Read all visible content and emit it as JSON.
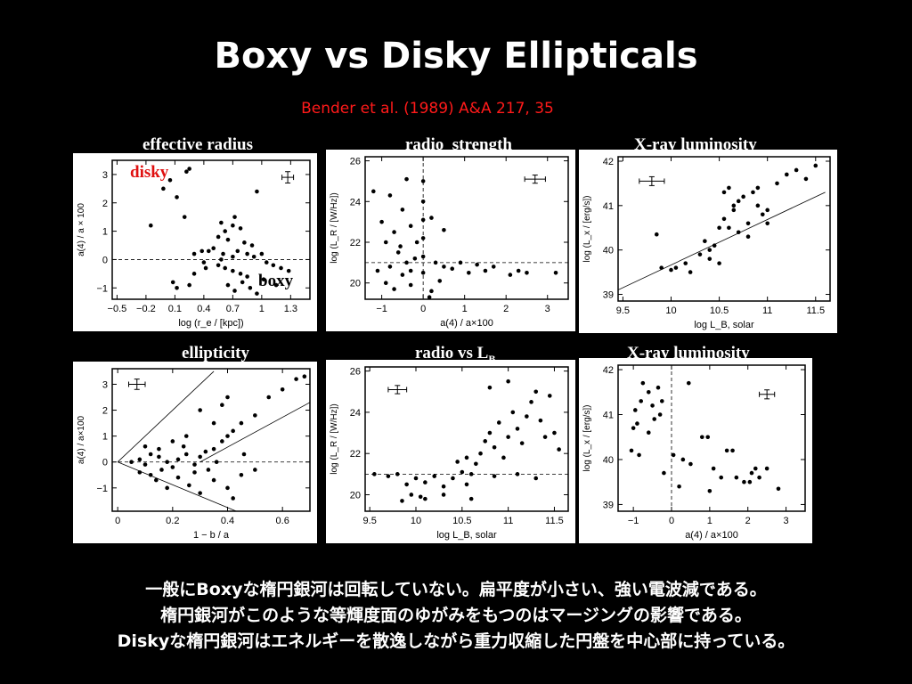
{
  "title": "Boxy vs Disky Ellipticals",
  "citation": "Bender et al. (1989) A&A 217, 35",
  "overlay": {
    "disky": "disky",
    "boxy": "boxy"
  },
  "caption": [
    "一般にBoxyな楕円銀河は回転していない。扁平度が小さい、強い電波減である。",
    "楕円銀河がこのような等輝度面のゆがみをもつのはマージングの影響である。",
    "Diskyな楕円銀河はエネルギーを散逸しながら重力収縮した円盤を中心部に持っている。"
  ],
  "colors": {
    "background": "#000000",
    "citation": "#ff1a1a",
    "disky": "#e01010",
    "plot": "#ffffff"
  },
  "chart_data": [
    {
      "type": "scatter",
      "label": "effective radius",
      "xlabel": "log (r_e / [kpc])",
      "ylabel": "a(4) / a × 100",
      "xlim": [
        -0.55,
        1.5
      ],
      "ylim": [
        -1.4,
        3.5
      ],
      "xticks": [
        -0.5,
        -0.2,
        0.1,
        0.4,
        0.7,
        1.0,
        1.3
      ],
      "xticklabels": [
        "−0.5",
        "−0.2",
        "0.1",
        "0.4",
        "0.7",
        "1",
        "1.3"
      ],
      "yticks": [
        -1,
        0,
        1,
        2,
        3
      ],
      "hlines": [
        0
      ],
      "errorbar": {
        "x": 1.27,
        "y": 2.9,
        "xerr": 0.06,
        "yerr": 0.2
      },
      "points": [
        [
          -0.02,
          2.5
        ],
        [
          0.05,
          2.8
        ],
        [
          0.22,
          3.1
        ],
        [
          0.25,
          3.2
        ],
        [
          0.12,
          2.2
        ],
        [
          0.2,
          1.5
        ],
        [
          -0.15,
          1.2
        ],
        [
          0.95,
          2.4
        ],
        [
          0.58,
          1.3
        ],
        [
          0.72,
          1.5
        ],
        [
          0.7,
          1.2
        ],
        [
          0.62,
          1.0
        ],
        [
          0.55,
          0.8
        ],
        [
          0.65,
          0.7
        ],
        [
          0.78,
          1.1
        ],
        [
          0.82,
          0.6
        ],
        [
          0.9,
          0.5
        ],
        [
          0.3,
          0.2
        ],
        [
          0.38,
          0.3
        ],
        [
          0.45,
          0.3
        ],
        [
          0.5,
          0.4
        ],
        [
          0.6,
          0.2
        ],
        [
          0.7,
          0.1
        ],
        [
          0.75,
          0.3
        ],
        [
          0.85,
          0.2
        ],
        [
          0.92,
          0.1
        ],
        [
          1.0,
          0.2
        ],
        [
          1.05,
          -0.1
        ],
        [
          1.12,
          -0.2
        ],
        [
          1.2,
          -0.3
        ],
        [
          1.28,
          -0.4
        ],
        [
          0.4,
          -0.1
        ],
        [
          0.55,
          -0.2
        ],
        [
          0.62,
          -0.3
        ],
        [
          0.7,
          -0.4
        ],
        [
          0.78,
          -0.5
        ],
        [
          0.85,
          -0.6
        ],
        [
          0.3,
          -0.5
        ],
        [
          0.42,
          -0.3
        ],
        [
          0.65,
          -0.9
        ],
        [
          0.72,
          -1.1
        ],
        [
          0.8,
          -0.8
        ],
        [
          0.88,
          -1.0
        ],
        [
          0.08,
          -0.8
        ],
        [
          0.12,
          -1.0
        ],
        [
          0.25,
          -0.9
        ],
        [
          1.15,
          -0.9
        ],
        [
          0.95,
          -1.2
        ],
        [
          1.02,
          -0.7
        ],
        [
          0.58,
          0.0
        ]
      ]
    },
    {
      "type": "scatter",
      "label": "radio  strength",
      "xlabel": "a(4) / a×100",
      "ylabel": "log (L_R / [W/Hz])",
      "xlim": [
        -1.4,
        3.5
      ],
      "ylim": [
        19.2,
        26.2
      ],
      "xticks": [
        -1,
        0,
        1,
        2,
        3
      ],
      "yticks": [
        20,
        22,
        24,
        26
      ],
      "hlines": [
        21
      ],
      "vlines": [
        0
      ],
      "errorbar": {
        "x": 2.7,
        "y": 25.1,
        "xerr": 0.25,
        "yerr": 0.2
      },
      "points": [
        [
          -0.4,
          25.1
        ],
        [
          -0.8,
          24.3
        ],
        [
          -0.5,
          23.6
        ],
        [
          -1.2,
          24.5
        ],
        [
          -1.0,
          23.0
        ],
        [
          -0.7,
          22.5
        ],
        [
          -0.3,
          22.8
        ],
        [
          0.2,
          23.2
        ],
        [
          0.5,
          22.6
        ],
        [
          -0.15,
          22.0
        ],
        [
          -0.9,
          22.0
        ],
        [
          -0.6,
          21.5
        ],
        [
          -0.4,
          21.0
        ],
        [
          -0.2,
          21.2
        ],
        [
          -0.8,
          20.8
        ],
        [
          -1.1,
          20.6
        ],
        [
          -0.5,
          20.4
        ],
        [
          -0.3,
          20.6
        ],
        [
          0.0,
          25.0
        ],
        [
          0.0,
          24.0
        ],
        [
          0.0,
          23.1
        ],
        [
          0.0,
          22.2
        ],
        [
          0.0,
          21.3
        ],
        [
          0.0,
          20.5
        ],
        [
          0.3,
          21.0
        ],
        [
          0.5,
          20.8
        ],
        [
          0.7,
          20.7
        ],
        [
          0.9,
          21.0
        ],
        [
          1.1,
          20.5
        ],
        [
          1.3,
          20.9
        ],
        [
          1.5,
          20.6
        ],
        [
          1.7,
          20.8
        ],
        [
          2.1,
          20.4
        ],
        [
          2.3,
          20.6
        ],
        [
          2.5,
          20.5
        ],
        [
          -0.9,
          20.0
        ],
        [
          -0.3,
          19.9
        ],
        [
          0.2,
          19.6
        ],
        [
          0.4,
          20.1
        ],
        [
          -0.7,
          19.7
        ],
        [
          3.2,
          20.5
        ],
        [
          0.15,
          19.3
        ],
        [
          -0.55,
          21.8
        ]
      ]
    },
    {
      "type": "scatter",
      "label": "X-ray luminosity",
      "xlabel": "log L_B, solar",
      "ylabel": "log (L_x / [erg/s])",
      "xlim": [
        9.45,
        11.65
      ],
      "ylim": [
        38.85,
        42.1
      ],
      "xticks": [
        9.5,
        10,
        10.5,
        11,
        11.5
      ],
      "xticklabels": [
        "9.5",
        "10",
        "10.5",
        "11",
        "11.5"
      ],
      "yticks": [
        39,
        40,
        41,
        42
      ],
      "fitline": [
        [
          9.45,
          39.1
        ],
        [
          11.6,
          41.3
        ]
      ],
      "errorbar": {
        "x": 9.8,
        "y": 41.55,
        "xerr": 0.13,
        "yerr": 0.1
      },
      "points": [
        [
          9.85,
          40.35
        ],
        [
          9.9,
          39.6
        ],
        [
          10.0,
          39.55
        ],
        [
          10.05,
          39.6
        ],
        [
          10.15,
          39.7
        ],
        [
          10.2,
          39.5
        ],
        [
          10.3,
          39.9
        ],
        [
          10.4,
          40.0
        ],
        [
          10.45,
          40.1
        ],
        [
          10.4,
          39.8
        ],
        [
          10.5,
          40.5
        ],
        [
          10.55,
          40.7
        ],
        [
          10.6,
          40.5
        ],
        [
          10.65,
          40.9
        ],
        [
          10.7,
          41.1
        ],
        [
          10.75,
          41.2
        ],
        [
          10.8,
          40.6
        ],
        [
          10.85,
          41.3
        ],
        [
          10.9,
          41.0
        ],
        [
          10.95,
          40.8
        ],
        [
          11.0,
          40.9
        ],
        [
          11.1,
          41.5
        ],
        [
          11.2,
          41.7
        ],
        [
          11.3,
          41.8
        ],
        [
          11.4,
          41.6
        ],
        [
          11.5,
          41.9
        ],
        [
          10.55,
          41.3
        ],
        [
          10.6,
          41.4
        ],
        [
          10.7,
          40.4
        ],
        [
          10.8,
          40.3
        ],
        [
          11.0,
          40.6
        ],
        [
          10.5,
          39.7
        ],
        [
          10.35,
          40.2
        ],
        [
          10.65,
          41.0
        ],
        [
          10.9,
          41.4
        ]
      ]
    },
    {
      "type": "scatter",
      "label": "ellipticity",
      "xlabel": "1 − b / a",
      "ylabel": "a(4) / a×100",
      "xlim": [
        -0.02,
        0.7
      ],
      "ylim": [
        -1.9,
        3.6
      ],
      "xticks": [
        0,
        0.2,
        0.4,
        0.6
      ],
      "yticks": [
        -1,
        0,
        1,
        2,
        3
      ],
      "hlines": [
        0
      ],
      "lines": [
        [
          [
            0,
            0
          ],
          [
            0.35,
            3.5
          ]
        ],
        [
          [
            0,
            0
          ],
          [
            0.5,
            -2.2
          ]
        ],
        [
          [
            0.3,
            0
          ],
          [
            0.7,
            2.3
          ]
        ]
      ],
      "errorbar": {
        "x": 0.07,
        "y": 3.0,
        "xerr": 0.03,
        "yerr": 0.2
      },
      "points": [
        [
          0.05,
          0.0
        ],
        [
          0.08,
          0.1
        ],
        [
          0.1,
          -0.1
        ],
        [
          0.12,
          0.3
        ],
        [
          0.15,
          0.2
        ],
        [
          0.18,
          0.0
        ],
        [
          0.2,
          -0.2
        ],
        [
          0.22,
          0.1
        ],
        [
          0.25,
          0.3
        ],
        [
          0.28,
          -0.1
        ],
        [
          0.3,
          0.2
        ],
        [
          0.32,
          0.4
        ],
        [
          0.35,
          0.5
        ],
        [
          0.38,
          0.8
        ],
        [
          0.4,
          1.0
        ],
        [
          0.42,
          1.2
        ],
        [
          0.45,
          1.5
        ],
        [
          0.5,
          1.8
        ],
        [
          0.55,
          2.5
        ],
        [
          0.6,
          2.8
        ],
        [
          0.65,
          3.2
        ],
        [
          0.68,
          3.3
        ],
        [
          0.35,
          1.5
        ],
        [
          0.38,
          2.2
        ],
        [
          0.4,
          2.5
        ],
        [
          0.3,
          2.0
        ],
        [
          0.25,
          1.0
        ],
        [
          0.2,
          0.8
        ],
        [
          0.15,
          0.5
        ],
        [
          0.1,
          0.6
        ],
        [
          0.22,
          -0.6
        ],
        [
          0.26,
          -0.9
        ],
        [
          0.3,
          -1.2
        ],
        [
          0.35,
          -0.7
        ],
        [
          0.4,
          -1.0
        ],
        [
          0.42,
          -1.4
        ],
        [
          0.18,
          -1.0
        ],
        [
          0.14,
          -0.7
        ],
        [
          0.08,
          -0.4
        ],
        [
          0.28,
          -0.4
        ],
        [
          0.33,
          -0.3
        ],
        [
          0.45,
          -0.5
        ],
        [
          0.5,
          -0.3
        ],
        [
          0.24,
          0.6
        ],
        [
          0.36,
          0.0
        ],
        [
          0.16,
          -0.3
        ],
        [
          0.12,
          -0.5
        ],
        [
          0.46,
          0.3
        ]
      ]
    },
    {
      "type": "scatter",
      "label": "radio vs L",
      "label_sub": "B",
      "xlabel": "log  L_B, solar",
      "ylabel": "log (L_R / [W/Hz])",
      "xlim": [
        9.45,
        11.65
      ],
      "ylim": [
        19.2,
        26.2
      ],
      "xticks": [
        9.5,
        10,
        10.5,
        11,
        11.5
      ],
      "xticklabels": [
        "9.5",
        "10",
        "10.5",
        "11",
        "11.5"
      ],
      "yticks": [
        20,
        22,
        24,
        26
      ],
      "hlines": [
        21
      ],
      "errorbar": {
        "x": 9.8,
        "y": 25.1,
        "xerr": 0.1,
        "yerr": 0.2
      },
      "points": [
        [
          9.55,
          21.0
        ],
        [
          9.7,
          20.9
        ],
        [
          9.8,
          21.0
        ],
        [
          9.9,
          20.5
        ],
        [
          9.95,
          20.0
        ],
        [
          10.0,
          20.8
        ],
        [
          10.05,
          19.9
        ],
        [
          10.1,
          20.6
        ],
        [
          10.2,
          20.9
        ],
        [
          10.3,
          20.4
        ],
        [
          10.4,
          20.8
        ],
        [
          10.5,
          21.1
        ],
        [
          10.55,
          20.5
        ],
        [
          10.6,
          21.0
        ],
        [
          10.65,
          21.5
        ],
        [
          10.7,
          22.0
        ],
        [
          10.75,
          22.6
        ],
        [
          10.8,
          23.0
        ],
        [
          10.85,
          22.3
        ],
        [
          10.9,
          23.5
        ],
        [
          10.95,
          21.8
        ],
        [
          11.0,
          22.8
        ],
        [
          11.05,
          24.0
        ],
        [
          11.1,
          23.2
        ],
        [
          11.15,
          22.5
        ],
        [
          11.2,
          23.8
        ],
        [
          11.25,
          24.5
        ],
        [
          11.3,
          25.0
        ],
        [
          11.35,
          23.6
        ],
        [
          11.4,
          22.8
        ],
        [
          11.45,
          24.8
        ],
        [
          11.5,
          23.0
        ],
        [
          11.55,
          22.2
        ],
        [
          10.8,
          25.2
        ],
        [
          11.0,
          25.5
        ],
        [
          10.45,
          21.6
        ],
        [
          10.55,
          21.8
        ],
        [
          10.3,
          20.0
        ],
        [
          10.6,
          19.8
        ],
        [
          10.85,
          20.9
        ],
        [
          11.1,
          21.0
        ],
        [
          11.3,
          20.8
        ],
        [
          9.85,
          19.7
        ],
        [
          10.1,
          19.8
        ]
      ]
    },
    {
      "type": "scatter",
      "label": "X-ray luminosity",
      "xlabel": "a(4) / a×100",
      "ylabel": "log (L_x / [erg/s])",
      "xlim": [
        -1.4,
        3.5
      ],
      "ylim": [
        38.85,
        42.1
      ],
      "xticks": [
        -1,
        0,
        1,
        2,
        3
      ],
      "yticks": [
        39,
        40,
        41,
        42
      ],
      "vlines": [
        0
      ],
      "errorbar": {
        "x": 2.5,
        "y": 41.45,
        "xerr": 0.2,
        "yerr": 0.1
      },
      "points": [
        [
          -0.9,
          40.8
        ],
        [
          -0.8,
          41.3
        ],
        [
          -0.75,
          41.7
        ],
        [
          -0.6,
          41.5
        ],
        [
          -0.5,
          41.2
        ],
        [
          -0.45,
          40.9
        ],
        [
          -0.35,
          41.6
        ],
        [
          -0.3,
          41.0
        ],
        [
          -0.25,
          41.3
        ],
        [
          -1.0,
          40.7
        ],
        [
          -1.05,
          40.2
        ],
        [
          -0.85,
          40.1
        ],
        [
          -0.6,
          40.6
        ],
        [
          0.05,
          40.1
        ],
        [
          0.3,
          40.0
        ],
        [
          0.45,
          41.7
        ],
        [
          0.5,
          39.9
        ],
        [
          0.8,
          40.5
        ],
        [
          0.95,
          40.5
        ],
        [
          1.1,
          39.8
        ],
        [
          1.3,
          39.6
        ],
        [
          1.45,
          40.2
        ],
        [
          1.6,
          40.2
        ],
        [
          1.7,
          39.6
        ],
        [
          1.9,
          39.5
        ],
        [
          2.1,
          39.7
        ],
        [
          2.2,
          39.8
        ],
        [
          2.3,
          39.6
        ],
        [
          2.5,
          39.8
        ],
        [
          0.2,
          39.4
        ],
        [
          1.0,
          39.3
        ],
        [
          2.05,
          39.5
        ],
        [
          -0.95,
          41.1
        ],
        [
          -0.2,
          39.7
        ],
        [
          2.8,
          39.35
        ]
      ]
    }
  ]
}
